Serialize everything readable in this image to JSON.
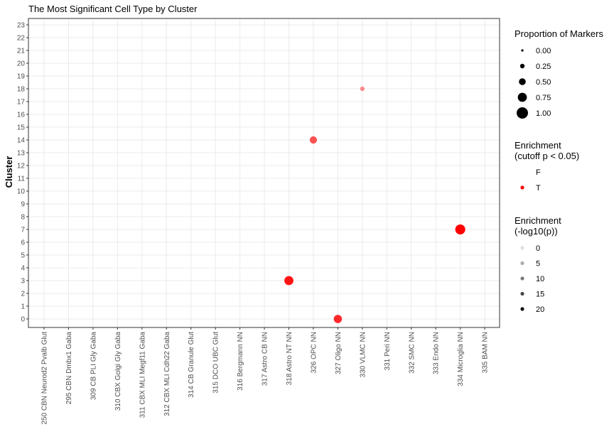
{
  "chart_data": {
    "type": "scatter",
    "title": "The Most Significant Cell Type by Cluster",
    "xlabel": "",
    "ylabel": "Cluster",
    "categories": [
      "250 CBN Neurod2 Pvalb Glut",
      "295 CBN Dmbx1 Gaba",
      "309 CB PLI Gly Gaba",
      "310 CBX Golgi Gly Gaba",
      "311 CBX MLI Megf11 Gaba",
      "312 CBX MLI Cdh22 Gaba",
      "314 CB Granule Glut",
      "315 DCO UBC Glut",
      "316 Bergmann NN",
      "317 Astro CB NN",
      "318 Astro NT NN",
      "326 OPC NN",
      "327 Oligo NN",
      "330 VLMC NN",
      "331 Peri NN",
      "332 SMC NN",
      "333 Endo NN",
      "334 Microglia NN",
      "335 BAM NN"
    ],
    "y_ticks": [
      "0",
      "1",
      "2",
      "3",
      "4",
      "5",
      "6",
      "7",
      "8",
      "9",
      "10",
      "11",
      "12",
      "13",
      "14",
      "15",
      "16",
      "17",
      "18",
      "19",
      "20",
      "21",
      "22",
      "23"
    ],
    "ylim": [
      0,
      23
    ],
    "grid": true,
    "points": [
      {
        "category": "318 Astro NT NN",
        "cluster": 3,
        "proportion": 0.75,
        "enrichment": "T",
        "neglog10p": 20
      },
      {
        "category": "326 OPC NN",
        "cluster": 14,
        "proportion": 0.55,
        "enrichment": "T",
        "neglog10p": 14
      },
      {
        "category": "327 Oligo NN",
        "cluster": 0,
        "proportion": 0.65,
        "enrichment": "T",
        "neglog10p": 18
      },
      {
        "category": "330 VLMC NN",
        "cluster": 18,
        "proportion": 0.25,
        "enrichment": "T",
        "neglog10p": 8
      },
      {
        "category": "334 Microglia NN",
        "cluster": 7,
        "proportion": 0.85,
        "enrichment": "T",
        "neglog10p": 22
      }
    ],
    "legend_placement": "right",
    "legends": {
      "size": {
        "title": "Proportion of Markers",
        "items": [
          "0.00",
          "0.25",
          "0.50",
          "0.75",
          "1.00"
        ],
        "values": [
          0,
          0.25,
          0.5,
          0.75,
          1.0
        ]
      },
      "color": {
        "title_line1": "Enrichment",
        "title_line2": "(cutoff p < 0.05)",
        "items": [
          {
            "label": "F",
            "color": ""
          },
          {
            "label": "T",
            "color": "#ff0000"
          }
        ]
      },
      "alpha": {
        "title_line1": "Enrichment",
        "title_line2": "(-log10(p))",
        "items": [
          "0",
          "5",
          "10",
          "15",
          "20"
        ],
        "values": [
          0,
          5,
          10,
          15,
          20
        ]
      }
    },
    "colors": {
      "enriched": "#ff0000",
      "legend_dot": "#000000",
      "grid": "#ebebeb",
      "panel_border": "#333333"
    }
  }
}
